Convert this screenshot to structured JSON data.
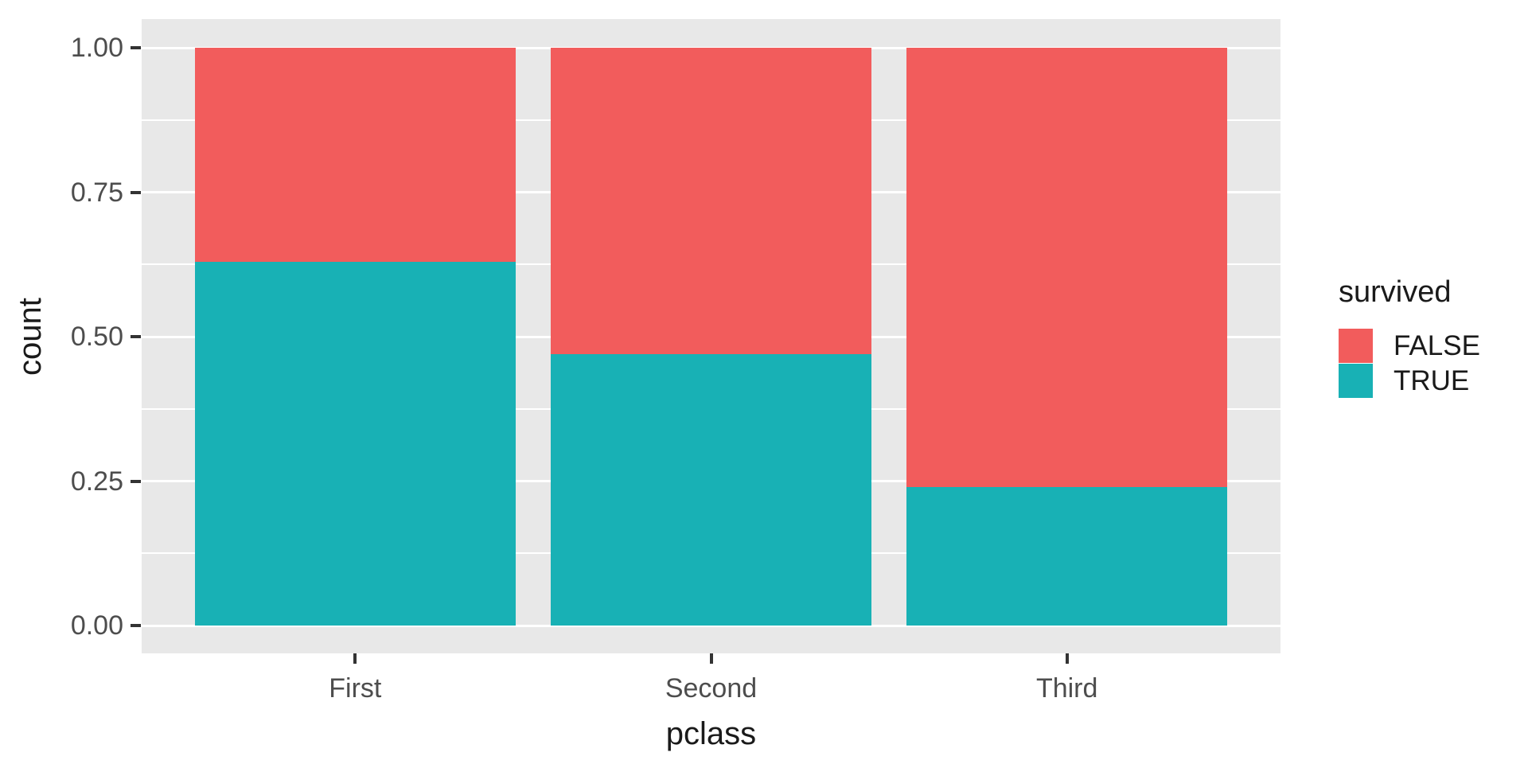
{
  "figure": {
    "background_color": "#FFFFFF",
    "panel_background_color": "#E8E8E8",
    "gridline_color": "#FFFFFF",
    "tick_mark_color": "#333333",
    "tick_label_color": "#4D4D4D",
    "axis_title_color": "#1A1A1A",
    "legend_text_color": "#1A1A1A"
  },
  "axes": {
    "x_title": "pclass",
    "y_title": "count",
    "x_tick_labels": [
      "First",
      "Second",
      "Third"
    ],
    "y_tick_labels": [
      "0.00",
      "0.25",
      "0.50",
      "0.75",
      "1.00"
    ]
  },
  "legend": {
    "title": "survived",
    "items": [
      {
        "label": "FALSE",
        "color": "#F25C5C"
      },
      {
        "label": "TRUE",
        "color": "#18B1B5"
      }
    ]
  },
  "chart_data": {
    "type": "bar",
    "subtype": "stacked-filled-proportion",
    "title": "",
    "xlabel": "pclass",
    "ylabel": "count",
    "categories": [
      "First",
      "Second",
      "Third"
    ],
    "series": [
      {
        "name": "TRUE",
        "color": "#18B1B5",
        "values": [
          0.63,
          0.47,
          0.24
        ]
      },
      {
        "name": "FALSE",
        "color": "#F25C5C",
        "values": [
          0.37,
          0.53,
          0.76
        ]
      }
    ],
    "stack_order_bottom_to_top": [
      "TRUE",
      "FALSE"
    ],
    "ylim": [
      0,
      1
    ],
    "yticks": [
      0,
      0.25,
      0.5,
      0.75,
      1.0
    ],
    "minor_yticks": [
      0.125,
      0.375,
      0.625,
      0.875
    ],
    "grid": true,
    "legend_position": "right",
    "legend_title": "survived"
  }
}
